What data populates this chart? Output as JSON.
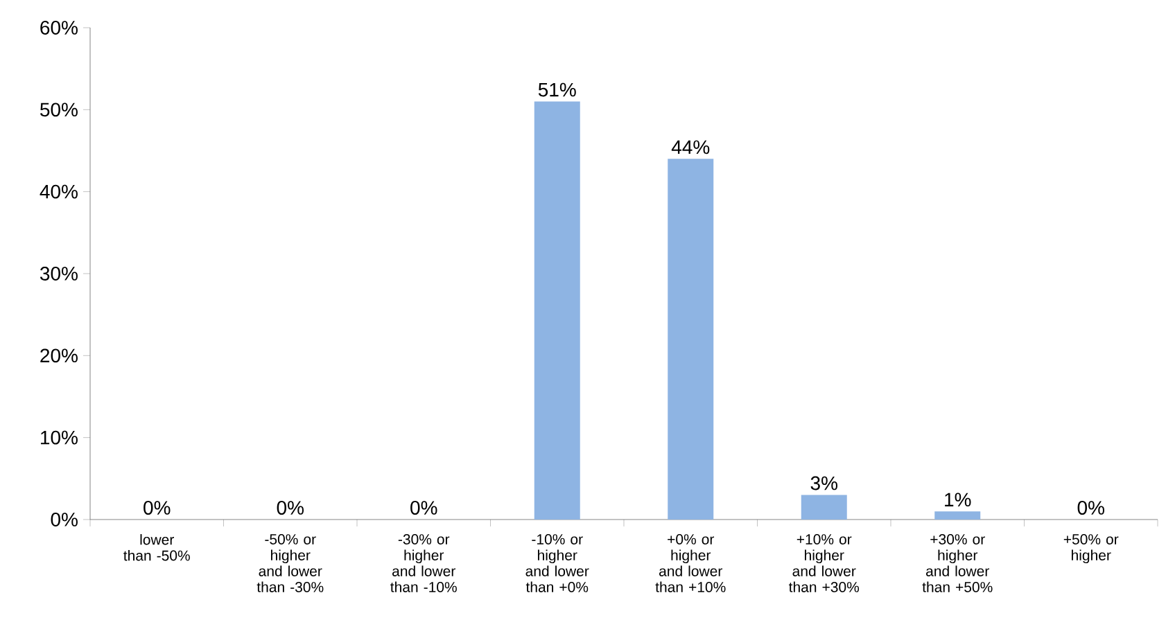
{
  "chart_data": {
    "type": "bar",
    "categories": [
      "lower than -50%",
      "-50% or higher and lower than -30%",
      "-30% or higher and lower than -10%",
      "-10% or higher and lower than +0%",
      "+0% or higher and lower than +10%",
      "+10% or higher and lower than +30%",
      "+30% or higher and lower than +50%",
      "+50% or higher"
    ],
    "values": [
      0,
      0,
      0,
      51,
      44,
      3,
      1,
      0
    ],
    "value_labels": [
      "0%",
      "0%",
      "0%",
      "51%",
      "44%",
      "3%",
      "1%",
      "0%"
    ],
    "color": "#8eb4e3",
    "ylim": [
      0,
      60
    ],
    "yticks": [
      {
        "value": 0,
        "label": "0%"
      },
      {
        "value": 10,
        "label": "10%"
      },
      {
        "value": 20,
        "label": "20%"
      },
      {
        "value": 30,
        "label": "30%"
      },
      {
        "value": 40,
        "label": "40%"
      },
      {
        "value": 50,
        "label": "50%"
      },
      {
        "value": 60,
        "label": "60%"
      }
    ],
    "grid": false
  }
}
